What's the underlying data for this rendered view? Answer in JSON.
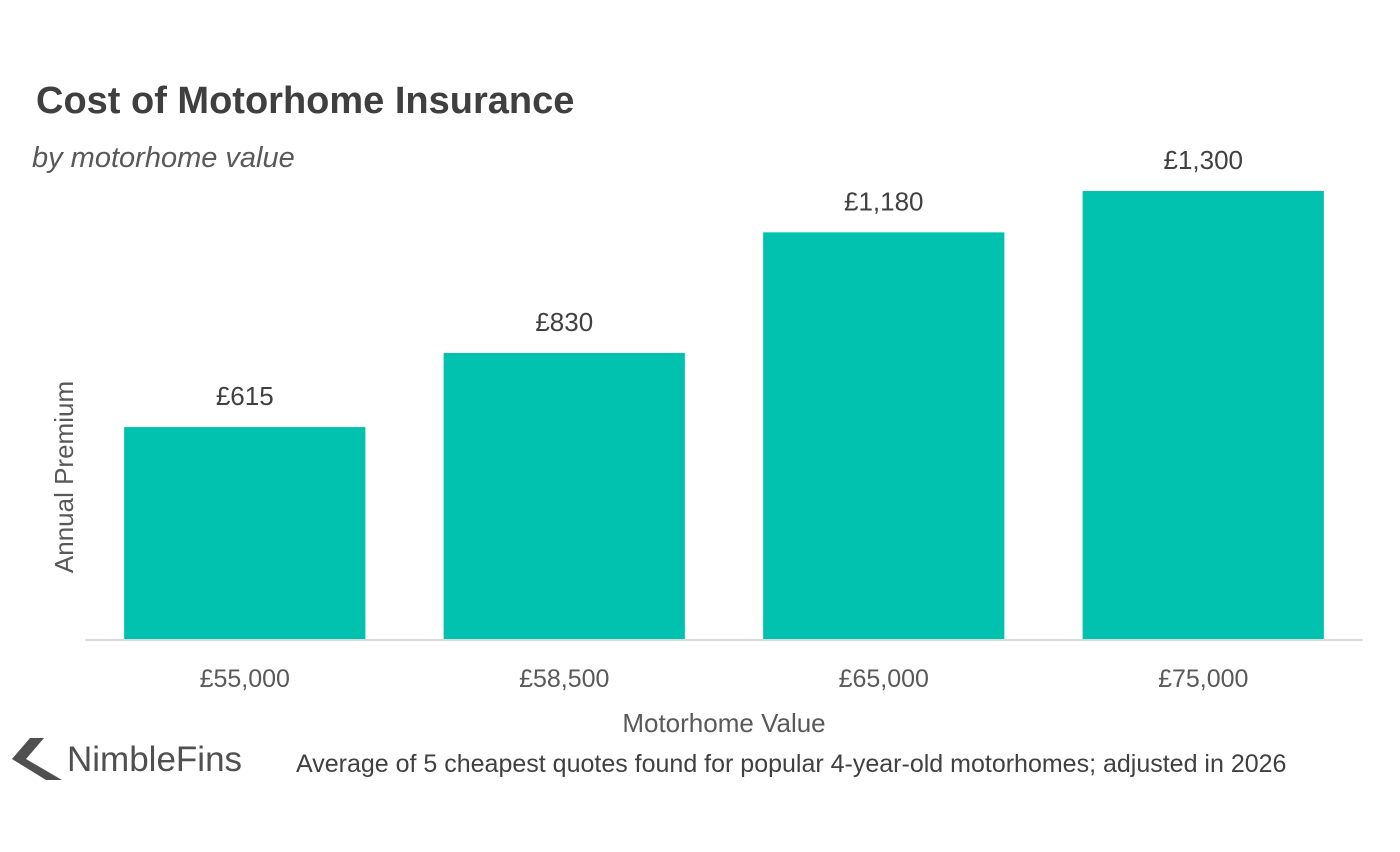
{
  "chart_data": {
    "type": "bar",
    "title": "Cost of Motorhome Insurance",
    "subtitle": "by motorhome value",
    "xlabel": "Motorhome Value",
    "ylabel": "Annual Premium",
    "categories": [
      "£55,000",
      "£58,500",
      "£65,000",
      "£75,000"
    ],
    "values": [
      615,
      830,
      1180,
      1300
    ],
    "data_labels": [
      "£615",
      "£830",
      "£1,180",
      "£1,300"
    ],
    "ylim": [
      0,
      1300
    ],
    "grid": false,
    "legend": "none",
    "bar_color": "#00c2ae",
    "axis_color": "#d9d9d9"
  },
  "footer": {
    "brand": "NimbleFins",
    "note": "Average of 5 cheapest quotes found for popular 4-year-old motorhomes; adjusted in 2026"
  }
}
